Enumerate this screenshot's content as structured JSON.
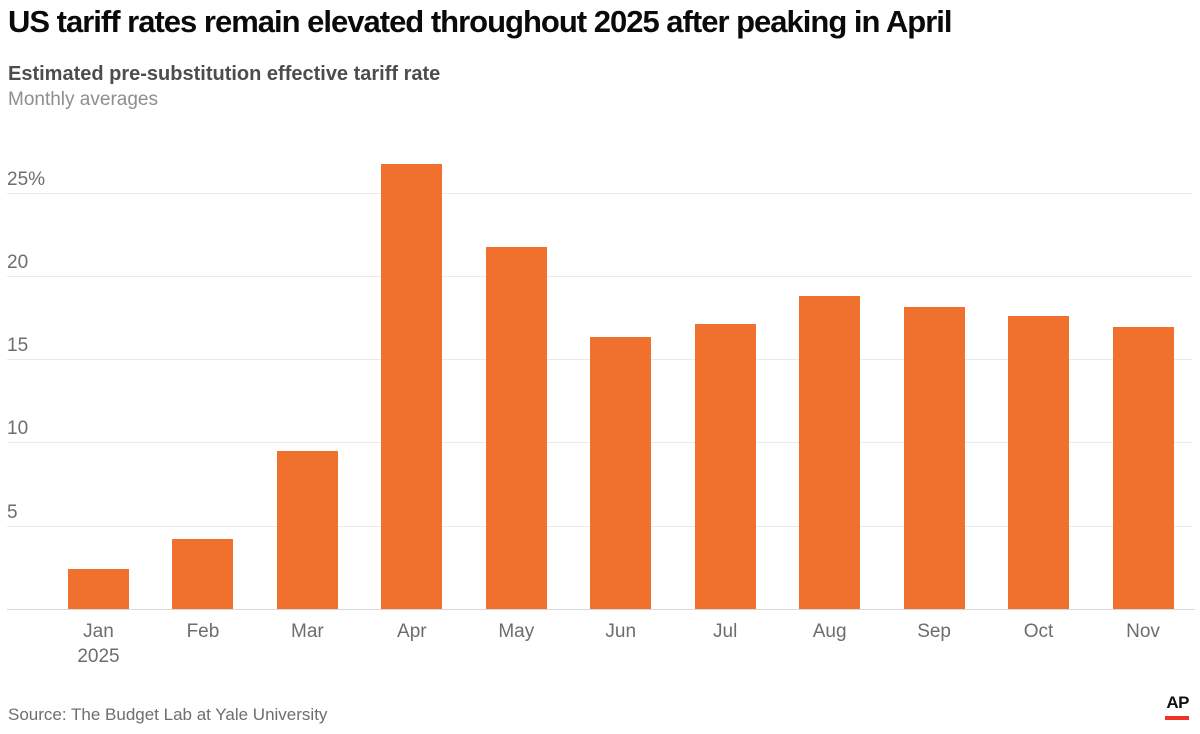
{
  "chart_data": {
    "type": "bar",
    "title": "US tariff rates remain elevated throughout 2025 after peaking in April",
    "subtitle": "Estimated pre-substitution effective tariff rate",
    "note": "Monthly averages",
    "categories": [
      "Jan",
      "Feb",
      "Mar",
      "Apr",
      "May",
      "Jun",
      "Jul",
      "Aug",
      "Sep",
      "Oct",
      "Nov"
    ],
    "x_axis_year_label": {
      "category_index": 0,
      "text": "2025"
    },
    "values": [
      2.4,
      4.2,
      9.5,
      26.7,
      21.7,
      16.3,
      17.1,
      18.8,
      18.1,
      17.6,
      16.9
    ],
    "unit": "percent",
    "y_ticks": [
      {
        "value": 5,
        "label": "5"
      },
      {
        "value": 10,
        "label": "10"
      },
      {
        "value": 15,
        "label": "15"
      },
      {
        "value": 20,
        "label": "20"
      },
      {
        "value": 25,
        "label": "25%"
      }
    ],
    "ylim": [
      0,
      27.5
    ],
    "grid": true,
    "legend": "none",
    "bar_color": "#f0702d"
  },
  "footer": {
    "source": "Source: The Budget Lab at Yale University",
    "logo_text": "AP",
    "logo_underline_color": "#ee3224"
  }
}
